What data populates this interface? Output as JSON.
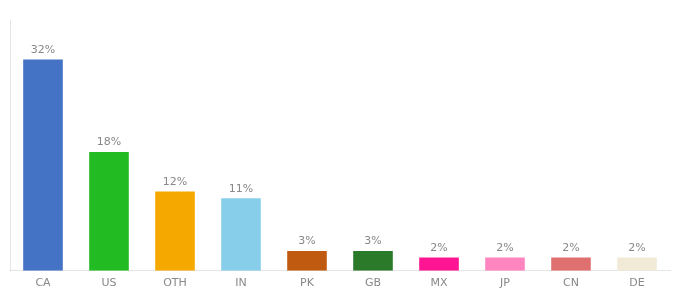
{
  "chart_data": {
    "type": "bar",
    "categories": [
      "CA",
      "US",
      "OTH",
      "IN",
      "PK",
      "GB",
      "MX",
      "JP",
      "CN",
      "DE"
    ],
    "values": [
      32,
      18,
      12,
      11,
      3,
      3,
      2,
      2,
      2,
      2
    ],
    "value_labels": [
      "32%",
      "18%",
      "12%",
      "11%",
      "3%",
      "3%",
      "2%",
      "2%",
      "2%",
      "2%"
    ],
    "colors": [
      "#4472c4",
      "#22bb22",
      "#f5a800",
      "#87ceeb",
      "#c05a10",
      "#2a7a2a",
      "#ff1493",
      "#ff85c0",
      "#e07070",
      "#f0ead6"
    ],
    "ylim": [
      0,
      38
    ],
    "grid": false,
    "data_labels": true,
    "tick_labels": "x"
  }
}
